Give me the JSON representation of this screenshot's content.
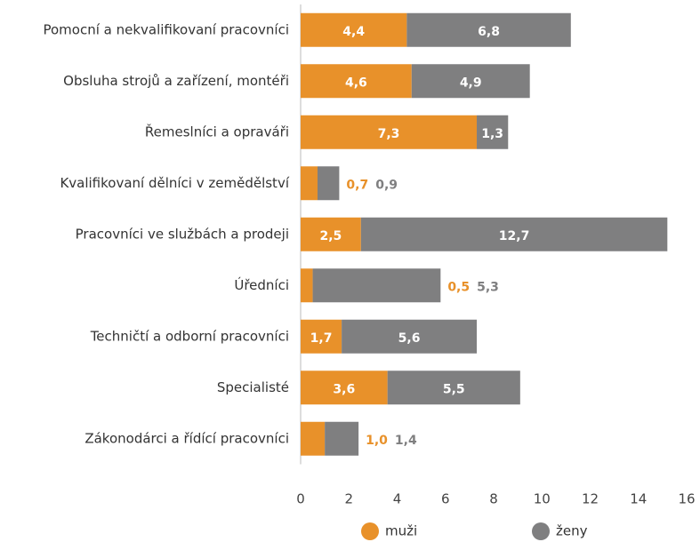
{
  "chart_data": {
    "type": "bar",
    "orientation": "horizontal",
    "stacked": true,
    "categories": [
      "Pomocní a nekvalifikovaní pracovníci",
      "Obsluha strojů a zařízení, montéři",
      "Řemeslníci a opraváři",
      "Kvalifikovaní dělníci v zemědělství",
      "Pracovníci ve službách a prodeji",
      "Úředníci",
      "Techničtí a odborní pracovníci",
      "Specialisté",
      "Zákonodárci a řídící pracovníci"
    ],
    "series": [
      {
        "name": "muži",
        "color": "#e8912a",
        "values": [
          4.4,
          4.6,
          7.3,
          0.7,
          2.5,
          0.5,
          1.7,
          3.6,
          1.0
        ],
        "value_labels": [
          "4,4",
          "4,6",
          "7,3",
          "0,7",
          "2,5",
          "0,5",
          "1,7",
          "3,6",
          "1,0"
        ]
      },
      {
        "name": "ženy",
        "color": "#7f7f80",
        "values": [
          6.8,
          4.9,
          1.3,
          0.9,
          12.7,
          5.3,
          5.6,
          5.5,
          1.4
        ],
        "value_labels": [
          "6,8",
          "4,9",
          "1,3",
          "0,9",
          "12,7",
          "5,3",
          "5,6",
          "5,5",
          "1,4"
        ]
      }
    ],
    "xlim": [
      0,
      16
    ],
    "xticks": [
      0,
      2,
      4,
      6,
      8,
      10,
      12,
      14,
      16
    ],
    "legend": "bottom"
  }
}
